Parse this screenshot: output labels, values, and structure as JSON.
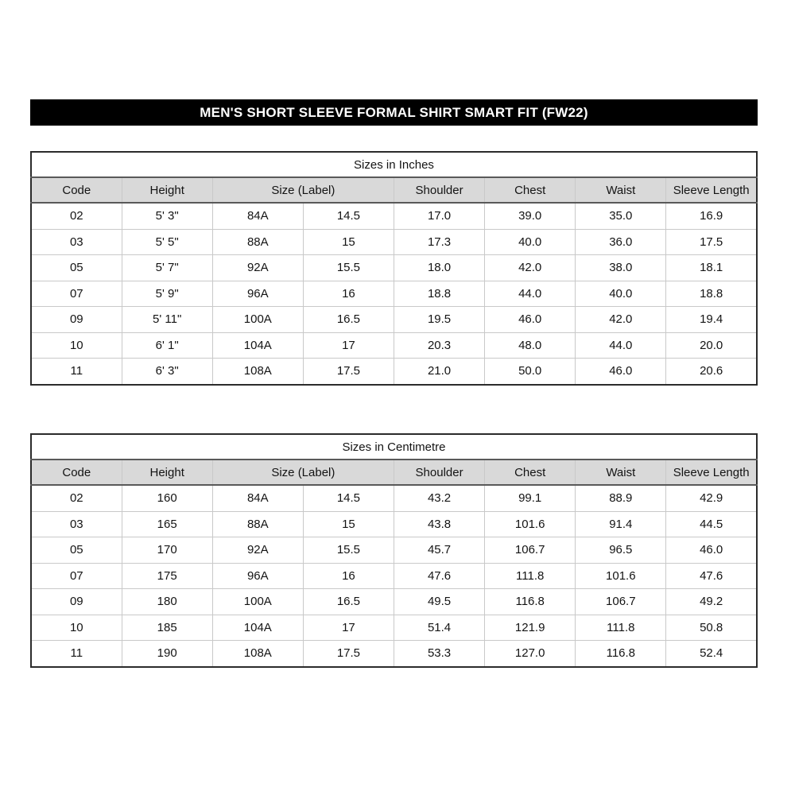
{
  "banner": {
    "title": "MEN'S SHORT SLEEVE FORMAL SHIRT SMART FIT (FW22)"
  },
  "tables": [
    {
      "title": "Sizes in Inches",
      "headers": [
        "Code",
        "Height",
        "Size (Label)",
        "Shoulder",
        "Chest",
        "Waist",
        "Sleeve Length"
      ],
      "size_label_colspan": 2,
      "rows": [
        [
          "02",
          "5' 3\"",
          "84A",
          "14.5",
          "17.0",
          "39.0",
          "35.0",
          "16.9"
        ],
        [
          "03",
          "5' 5\"",
          "88A",
          "15",
          "17.3",
          "40.0",
          "36.0",
          "17.5"
        ],
        [
          "05",
          "5' 7\"",
          "92A",
          "15.5",
          "18.0",
          "42.0",
          "38.0",
          "18.1"
        ],
        [
          "07",
          "5' 9\"",
          "96A",
          "16",
          "18.8",
          "44.0",
          "40.0",
          "18.8"
        ],
        [
          "09",
          "5' 11\"",
          "100A",
          "16.5",
          "19.5",
          "46.0",
          "42.0",
          "19.4"
        ],
        [
          "10",
          "6' 1\"",
          "104A",
          "17",
          "20.3",
          "48.0",
          "44.0",
          "20.0"
        ],
        [
          "11",
          "6' 3\"",
          "108A",
          "17.5",
          "21.0",
          "50.0",
          "46.0",
          "20.6"
        ]
      ]
    },
    {
      "title": "Sizes in Centimetre",
      "headers": [
        "Code",
        "Height",
        "Size (Label)",
        "Shoulder",
        "Chest",
        "Waist",
        "Sleeve Length"
      ],
      "size_label_colspan": 2,
      "rows": [
        [
          "02",
          "160",
          "84A",
          "14.5",
          "43.2",
          "99.1",
          "88.9",
          "42.9"
        ],
        [
          "03",
          "165",
          "88A",
          "15",
          "43.8",
          "101.6",
          "91.4",
          "44.5"
        ],
        [
          "05",
          "170",
          "92A",
          "15.5",
          "45.7",
          "106.7",
          "96.5",
          "46.0"
        ],
        [
          "07",
          "175",
          "96A",
          "16",
          "47.6",
          "111.8",
          "101.6",
          "47.6"
        ],
        [
          "09",
          "180",
          "100A",
          "16.5",
          "49.5",
          "116.8",
          "106.7",
          "49.2"
        ],
        [
          "10",
          "185",
          "104A",
          "17",
          "51.4",
          "121.9",
          "111.8",
          "50.8"
        ],
        [
          "11",
          "190",
          "108A",
          "17.5",
          "53.3",
          "127.0",
          "116.8",
          "52.4"
        ]
      ]
    }
  ],
  "colors": {
    "banner_bg": "#000000",
    "banner_text": "#ffffff",
    "header_row_bg": "#d9d9d9",
    "grid_line": "#c9c9c9",
    "outer_border": "#2b2b2b"
  }
}
